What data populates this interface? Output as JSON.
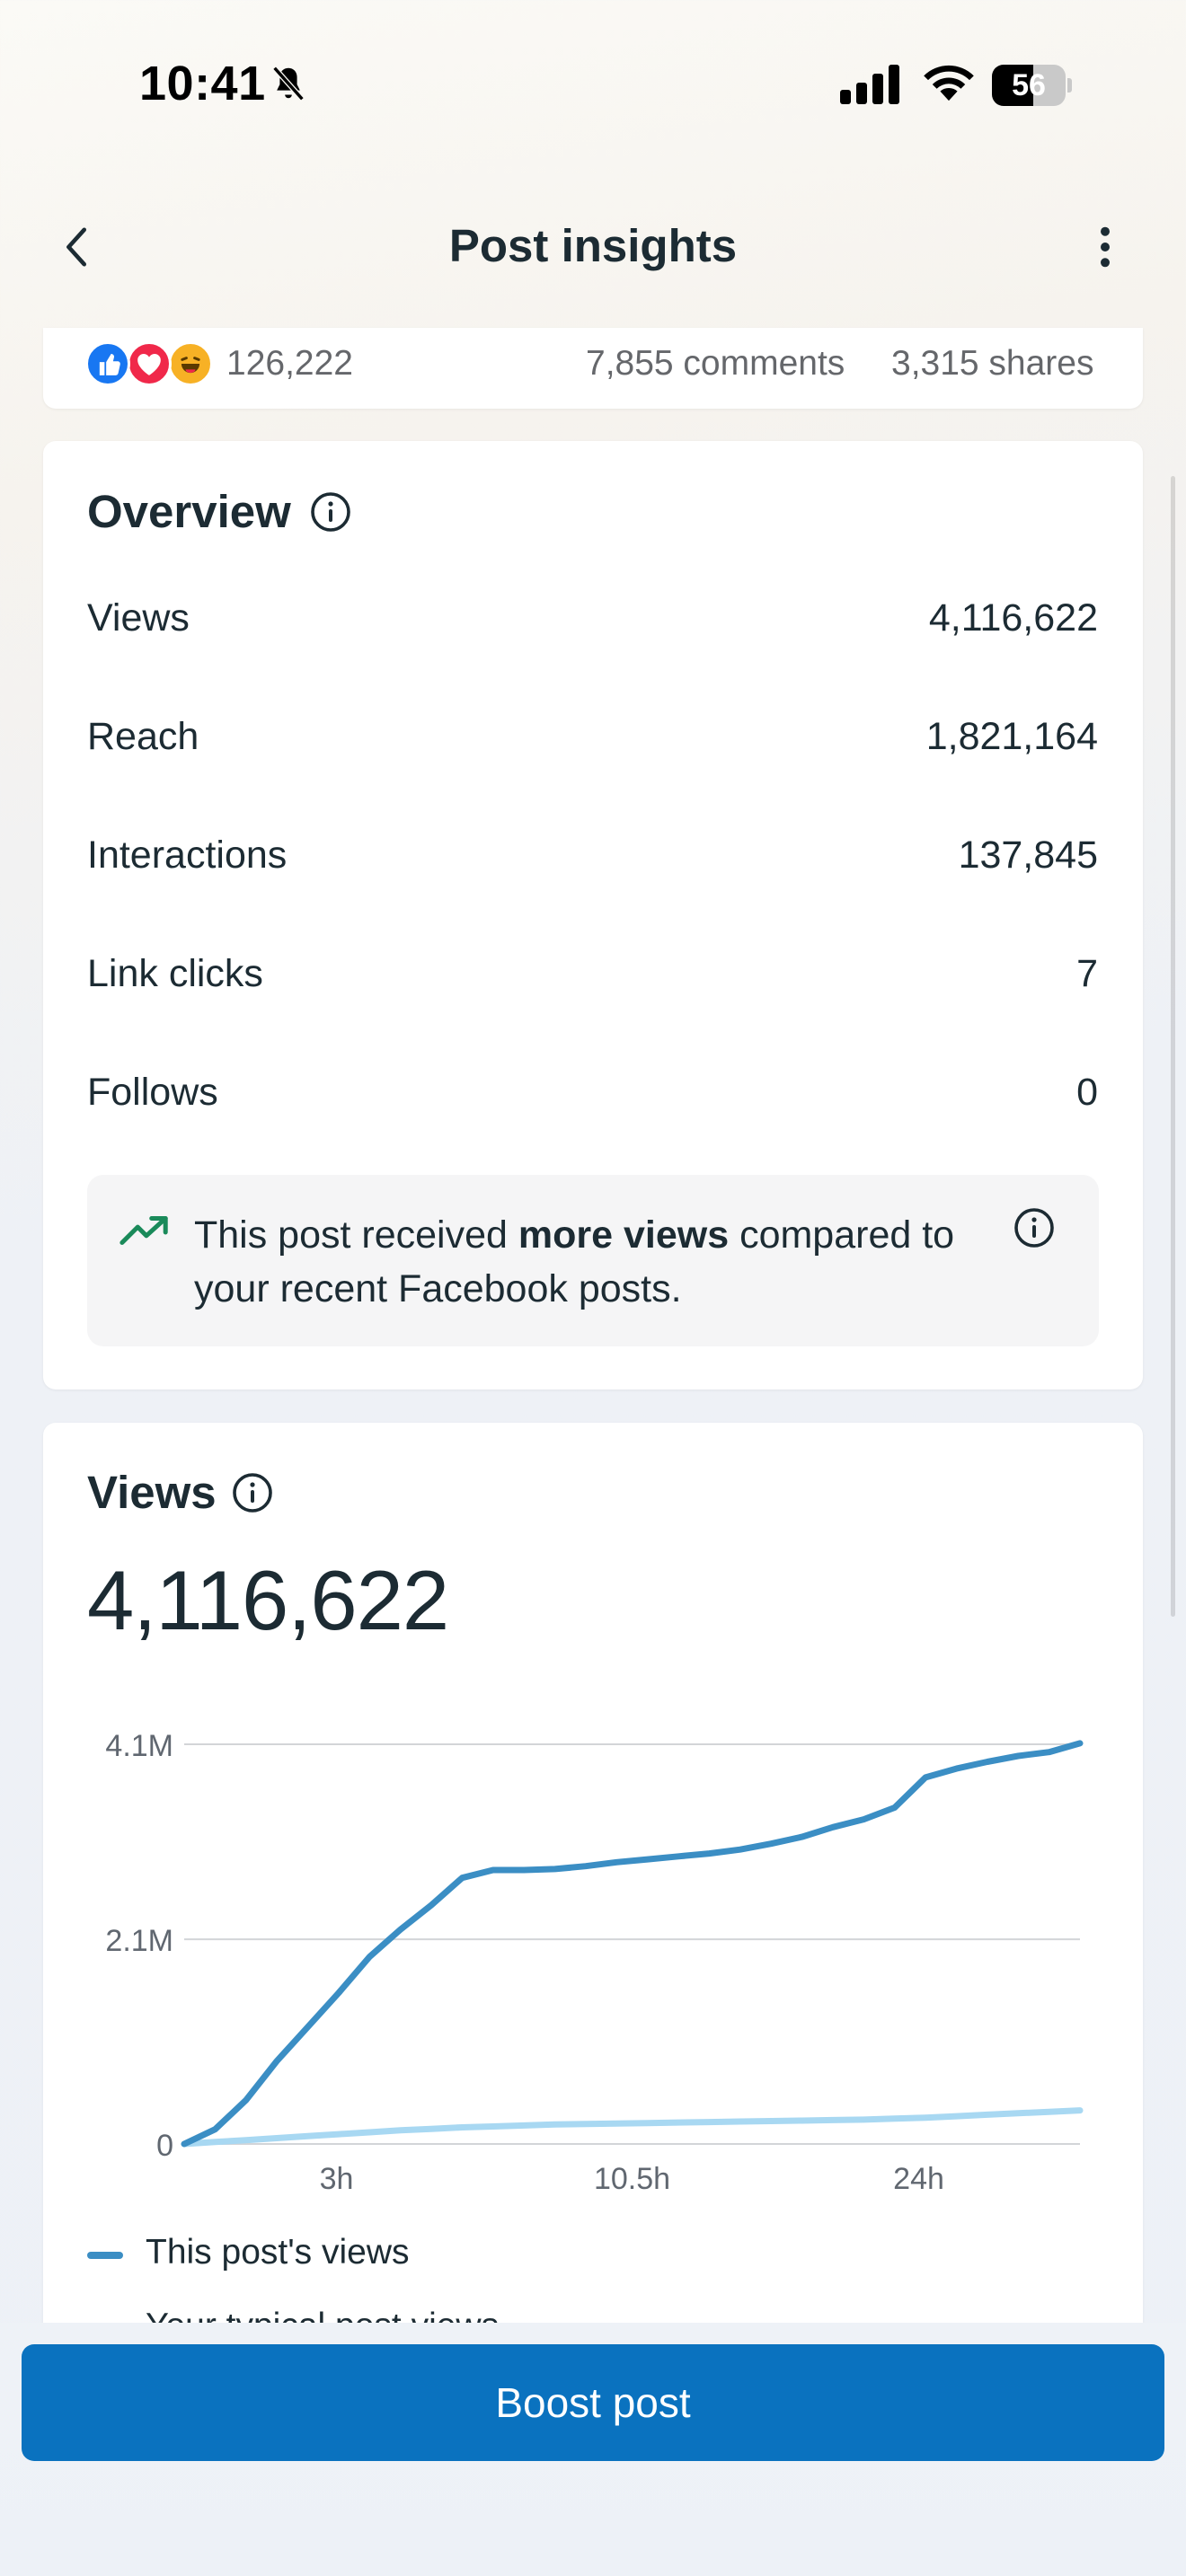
{
  "status_bar": {
    "time": "10:41",
    "battery": "56",
    "battery_level": 0.56
  },
  "header": {
    "title": "Post insights"
  },
  "post_summary": {
    "reaction_count": "126,222",
    "comments": "7,855 comments",
    "shares": "3,315 shares"
  },
  "overview": {
    "title": "Overview",
    "metrics": [
      {
        "label": "Views",
        "value": "4,116,622"
      },
      {
        "label": "Reach",
        "value": "1,821,164"
      },
      {
        "label": "Interactions",
        "value": "137,845"
      },
      {
        "label": "Link clicks",
        "value": "7"
      },
      {
        "label": "Follows",
        "value": "0"
      }
    ],
    "insight": {
      "prefix": "This post received ",
      "bold": "more views",
      "suffix": " compared to your recent Facebook posts."
    }
  },
  "views": {
    "title": "Views",
    "total": "4,116,622"
  },
  "chart_data": {
    "type": "line",
    "y_tick_labels": [
      "0",
      "2.1M",
      "4.1M"
    ],
    "y_ticks": [
      0,
      2100000,
      4100000
    ],
    "x_tick_labels": [
      "3h",
      "10.5h",
      "24h"
    ],
    "ylim": [
      0,
      4100000
    ],
    "colors": {
      "this_post": "#3b8ec4",
      "typical": "#a8d8f2"
    },
    "series": [
      {
        "name": "This post's views",
        "color": "#3b8ec4",
        "values": [
          0,
          150000,
          450000,
          850000,
          1200000,
          1550000,
          1920000,
          2200000,
          2450000,
          2730000,
          2810000,
          2810000,
          2820000,
          2850000,
          2890000,
          2920000,
          2950000,
          2980000,
          3020000,
          3080000,
          3150000,
          3250000,
          3330000,
          3450000,
          3760000,
          3850000,
          3920000,
          3980000,
          4020000,
          4110000
        ]
      },
      {
        "name": "Your typical post views",
        "color": "#a8d8f2",
        "values": [
          0,
          20000,
          40000,
          60000,
          80000,
          100000,
          120000,
          140000,
          155000,
          170000,
          180000,
          190000,
          200000,
          205000,
          210000,
          215000,
          220000,
          225000,
          230000,
          235000,
          240000,
          245000,
          250000,
          260000,
          270000,
          285000,
          300000,
          315000,
          330000,
          345000
        ]
      }
    ],
    "legend": [
      "This post's views",
      "Your typical post views"
    ]
  },
  "footer": {
    "boost_label": "Boost post"
  }
}
